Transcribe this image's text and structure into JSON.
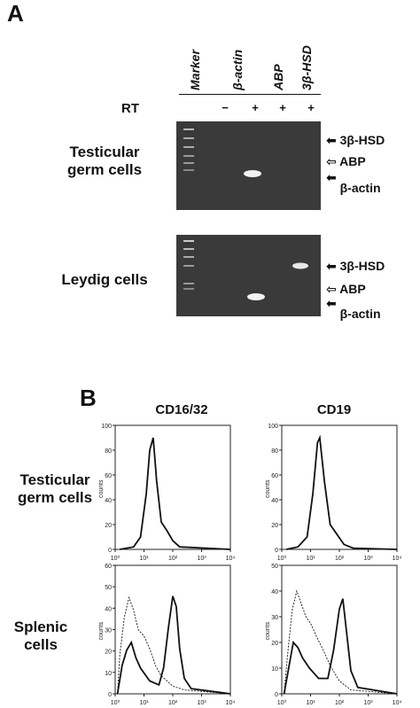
{
  "panel_a": {
    "letter": "A",
    "lanes": [
      "Marker",
      "β-actin",
      "ABP",
      "3β-HSD"
    ],
    "rt_label": "RT",
    "rt_signs": [
      "−",
      "+",
      "+",
      "+"
    ],
    "rows": [
      {
        "label_line1": "Testicular",
        "label_line2": "germ cells",
        "markers": [
          "3β-HSD",
          "ABP",
          "β-actin"
        ]
      },
      {
        "label_line1": "Leydig cells",
        "label_line2": "",
        "markers": [
          "3β-HSD",
          "ABP",
          "β-actin"
        ]
      }
    ]
  },
  "panel_b": {
    "letter": "B",
    "columns": [
      "CD16/32",
      "CD19"
    ],
    "rows": [
      {
        "label_line1": "Testicular",
        "label_line2": "germ cells"
      },
      {
        "label_line1": "Splenic",
        "label_line2": "cells"
      }
    ],
    "ylabel": "counts",
    "xticks": [
      "10⁰",
      "10¹",
      "10²",
      "10³",
      "10⁴"
    ]
  },
  "chart_data": [
    {
      "type": "line",
      "title": "CD16/32",
      "ylabel": "counts",
      "xscale": "log",
      "xlim": [
        1,
        10000
      ],
      "ylim": [
        0,
        100
      ],
      "yticks": [
        "0",
        "20",
        "40",
        "60",
        "80",
        "100"
      ]
    },
    {
      "type": "line",
      "title": "CD19",
      "ylabel": "counts",
      "xscale": "log",
      "xlim": [
        1,
        10000
      ],
      "ylim": [
        0,
        100
      ],
      "yticks": [
        "0",
        "20",
        "40",
        "60",
        "80",
        "100"
      ]
    },
    {
      "type": "line",
      "ylabel": "counts",
      "xscale": "log",
      "xlim": [
        1,
        10000
      ],
      "ylim": [
        0,
        60
      ],
      "yticks": [
        "0",
        "10",
        "20",
        "30",
        "40",
        "50",
        "60"
      ]
    },
    {
      "type": "line",
      "ylabel": "counts",
      "xscale": "log",
      "xlim": [
        1,
        10000
      ],
      "ylim": [
        0,
        50
      ],
      "yticks": [
        "0",
        "10",
        "20",
        "30",
        "40",
        "50"
      ]
    }
  ]
}
